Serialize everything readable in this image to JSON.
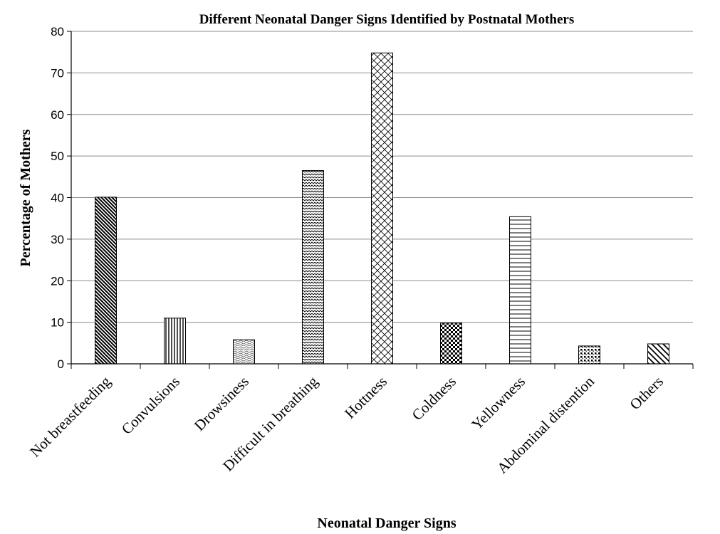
{
  "chart_data": {
    "type": "bar",
    "title": "Different Neonatal Danger Signs Identified by Postnatal Mothers",
    "xlabel": "Neonatal Danger Signs",
    "ylabel": "Percentage of Mothers",
    "ylim": [
      0,
      80
    ],
    "yticks": [
      0,
      10,
      20,
      30,
      40,
      50,
      60,
      70,
      80
    ],
    "grid": true,
    "legend": "none",
    "categories": [
      "Not breastfeeding",
      "Convulsions",
      "Drowsiness",
      "Difficult in breathing",
      "Hottness",
      "Coldness",
      "Yellowness",
      "Abdominal distention",
      "Others"
    ],
    "values": [
      40.1,
      11.0,
      5.8,
      46.5,
      74.8,
      9.8,
      35.4,
      4.3,
      4.8
    ],
    "patterns": [
      "dense-diagonal-down",
      "vertical-lines",
      "light-wave",
      "zigzag-dots",
      "diagonal-crosshatch",
      "checkerboard",
      "horizontal-lines",
      "dotted-grid",
      "wide-diagonal-down"
    ],
    "bar_color": "#000000"
  }
}
